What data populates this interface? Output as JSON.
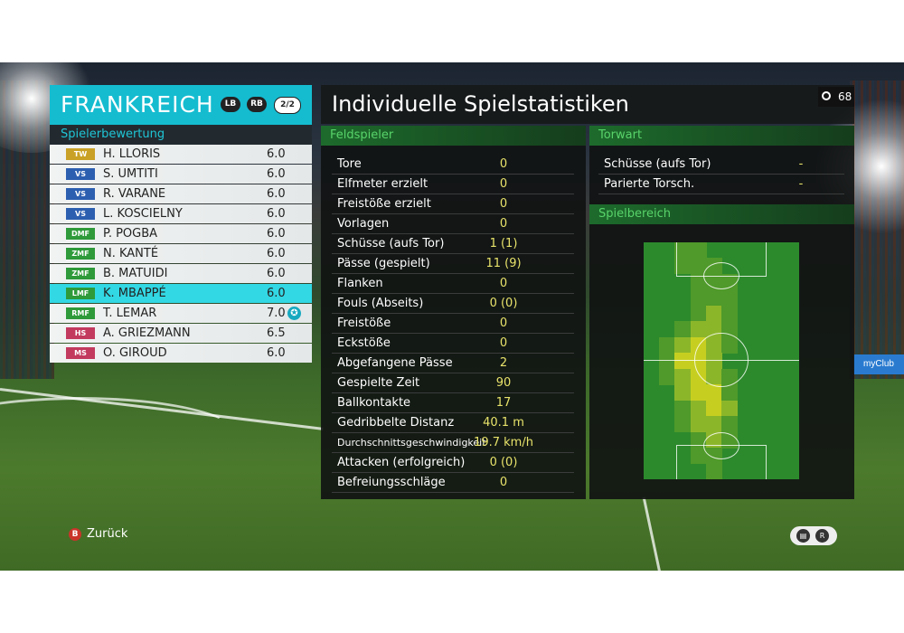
{
  "team": {
    "name": "FRANKREICH",
    "btn_left": "LB",
    "btn_right": "RB",
    "page": "2/2"
  },
  "roster_title": "Spielerbewertung",
  "players": [
    {
      "pos": "TW",
      "name": "H. LLORIS",
      "rating": "6.0",
      "color": "#c9a126"
    },
    {
      "pos": "VS",
      "name": "S. UMTITI",
      "rating": "6.0",
      "color": "#2d5fb0"
    },
    {
      "pos": "VS",
      "name": "R. VARANE",
      "rating": "6.0",
      "color": "#2d5fb0"
    },
    {
      "pos": "VS",
      "name": "L. KOSCIELNY",
      "rating": "6.0",
      "color": "#2d5fb0"
    },
    {
      "pos": "DMF",
      "name": "P. POGBA",
      "rating": "6.0",
      "color": "#2e9a3a"
    },
    {
      "pos": "ZMF",
      "name": "N. KANTÉ",
      "rating": "6.0",
      "color": "#2e9a3a"
    },
    {
      "pos": "ZMF",
      "name": "B. MATUIDI",
      "rating": "6.0",
      "color": "#2e9a3a"
    },
    {
      "pos": "LMF",
      "name": "K. MBAPPÉ",
      "rating": "6.0",
      "color": "#2e9a3a"
    },
    {
      "pos": "RMF",
      "name": "T. LEMAR",
      "rating": "7.0",
      "color": "#2e9a3a",
      "star": "✪"
    },
    {
      "pos": "HS",
      "name": "A. GRIEZMANN",
      "rating": "6.5",
      "color": "#c23a5e"
    },
    {
      "pos": "MS",
      "name": "O. GIROUD",
      "rating": "6.0",
      "color": "#c23a5e"
    }
  ],
  "page_title": "Individuelle Spielstatistiken",
  "timer": "68",
  "field_players_title": "Feldspieler",
  "field_stats": [
    {
      "label": "Tore",
      "value": "0"
    },
    {
      "label": "Elfmeter erzielt",
      "value": "0"
    },
    {
      "label": "Freistöße erzielt",
      "value": "0"
    },
    {
      "label": "Vorlagen",
      "value": "0"
    },
    {
      "label": "Schüsse (aufs Tor)",
      "value": "1 (1)"
    },
    {
      "label": "Pässe (gespielt)",
      "value": "11 (9)"
    },
    {
      "label": "Flanken",
      "value": "0"
    },
    {
      "label": "Fouls (Abseits)",
      "value": "0 (0)"
    },
    {
      "label": "Freistöße",
      "value": "0"
    },
    {
      "label": "Eckstöße",
      "value": "0"
    },
    {
      "label": "Abgefangene Pässe",
      "value": "2"
    },
    {
      "label": "Gespielte Zeit",
      "value": "90"
    },
    {
      "label": "Ballkontakte",
      "value": "17"
    },
    {
      "label": "Gedribbelte Distanz",
      "value": "40.1 m"
    },
    {
      "label": "Durchschnittsgeschwindigkeit",
      "value": "19.7 km/h"
    },
    {
      "label": "Attacken (erfolgreich)",
      "value": "0 (0)"
    },
    {
      "label": "Befreiungsschläge",
      "value": "0"
    }
  ],
  "goalkeeper_title": "Torwart",
  "gk_stats": [
    {
      "label": "Schüsse (aufs Tor)",
      "value": "-"
    },
    {
      "label": "Parierte Torsch.",
      "value": "-"
    }
  ],
  "area_title": "Spielbereich",
  "back_label": "Zurück",
  "back_button": "B",
  "colors": {
    "accent": "#15bcd0",
    "selected": "#32d8e4",
    "value": "#e8e36b",
    "green_head": "#58d46a"
  }
}
